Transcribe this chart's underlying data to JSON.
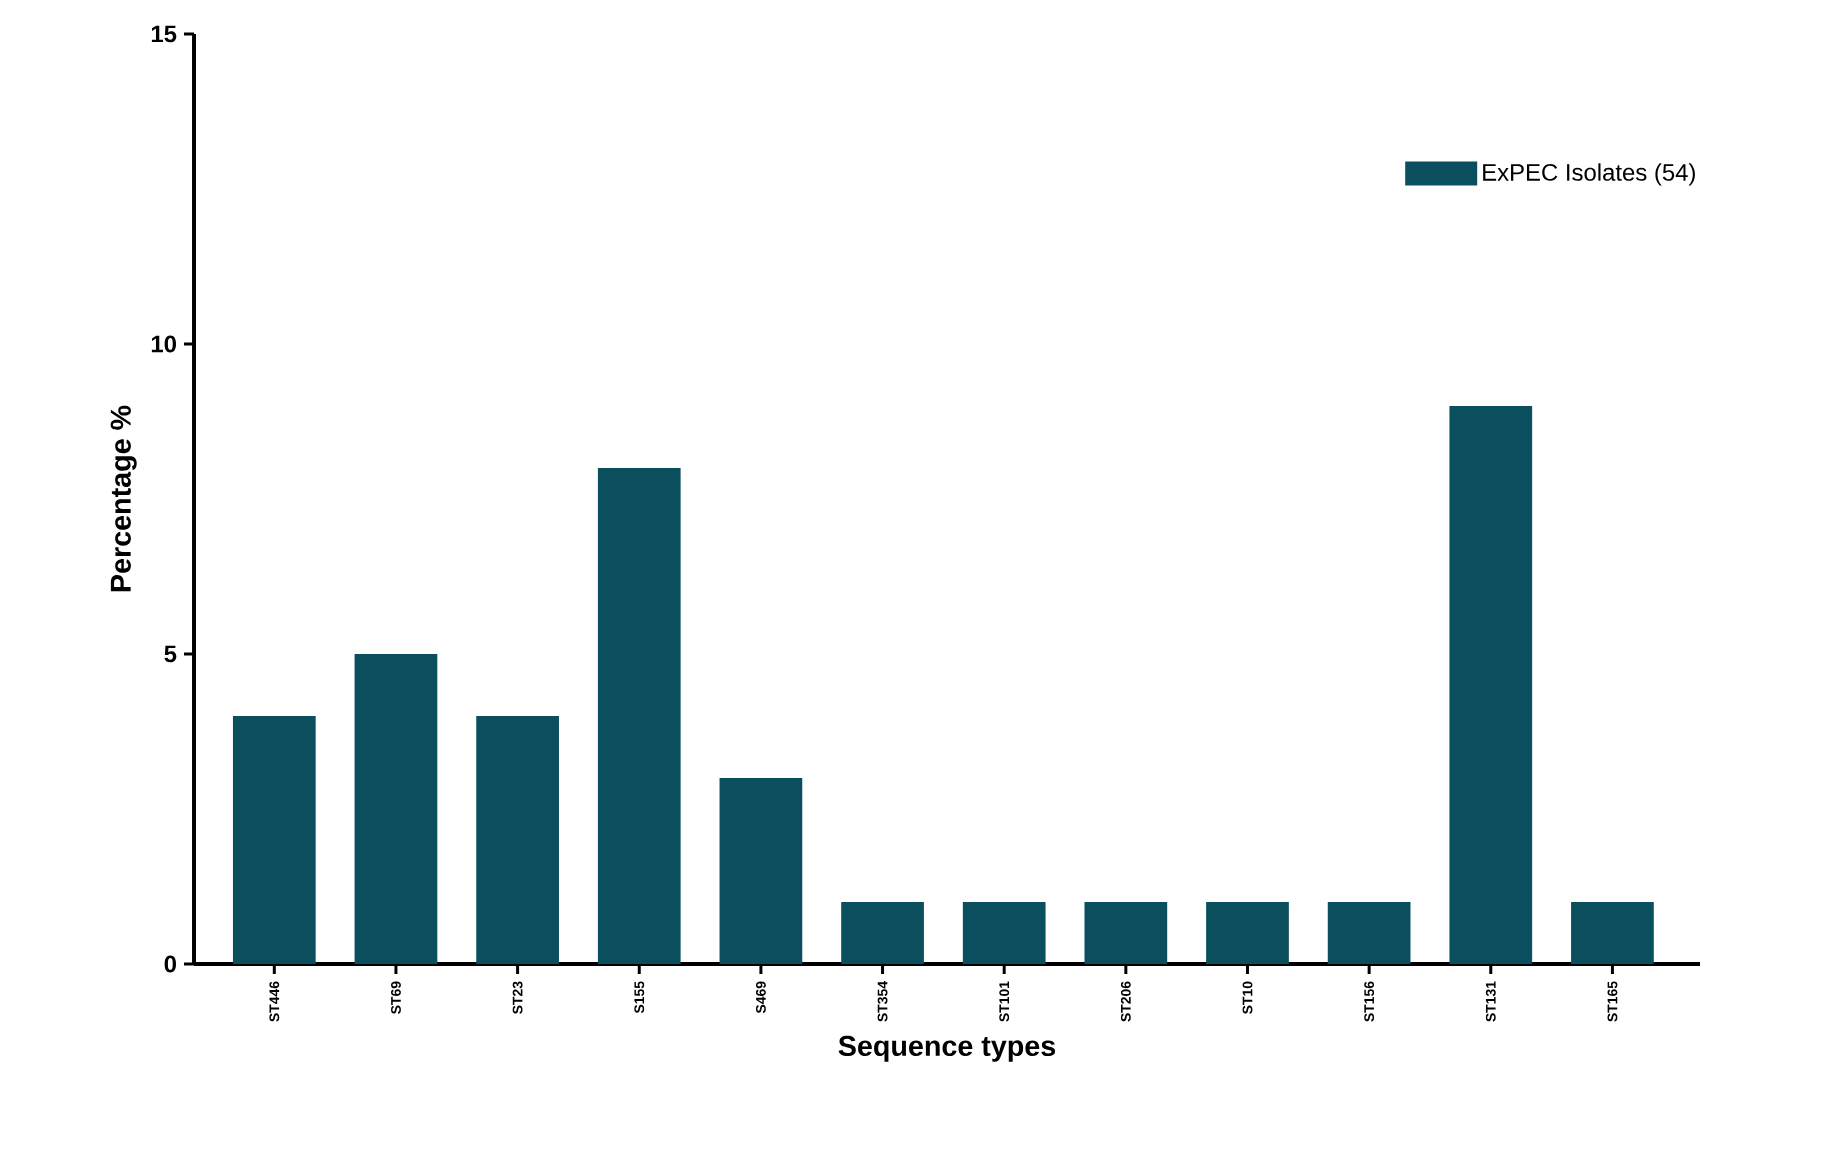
{
  "chart_data": {
    "type": "bar",
    "xlabel": "Sequence types",
    "ylabel": "Percentage %",
    "categories": [
      "ST446",
      "ST69",
      "ST23",
      "S155",
      "S469",
      "ST354",
      "ST101",
      "ST206",
      "ST10",
      "ST156",
      "ST131",
      "ST165"
    ],
    "series": [
      {
        "name": "ExPEC Isolates (54)",
        "color": "#0b4f5f",
        "values": [
          4,
          5,
          4,
          8,
          3,
          1,
          1,
          1,
          1,
          1,
          9,
          1
        ]
      }
    ],
    "ylim": [
      0,
      15
    ],
    "yticks": [
      0,
      5,
      10,
      15
    ],
    "legend": "top right"
  }
}
